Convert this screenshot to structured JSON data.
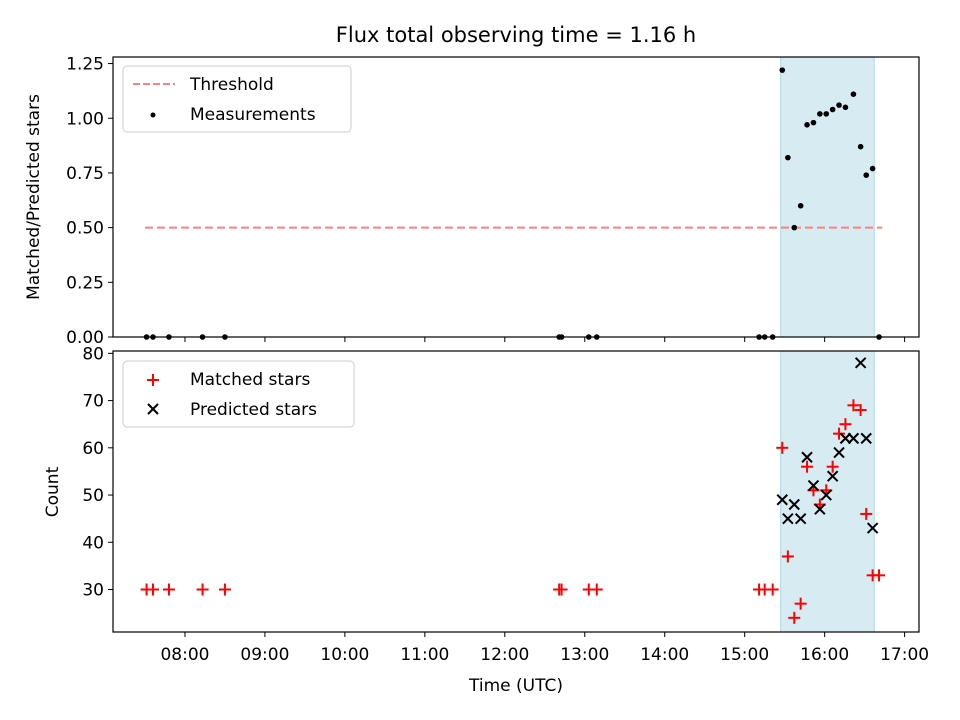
{
  "chart_data": [
    {
      "type": "scatter",
      "title": "Flux total observing time = 1.16 h",
      "xlabel": "",
      "ylabel": "Matched/Predicted stars",
      "ylim": [
        0,
        1.28
      ],
      "yticks": [
        0.0,
        0.25,
        0.5,
        0.75,
        1.0,
        1.25
      ],
      "ytick_labels": [
        "0.00",
        "0.25",
        "0.50",
        "0.75",
        "1.00",
        "1.25"
      ],
      "xlim_hours": [
        7.1,
        17.18
      ],
      "xticks_hours": [
        8,
        9,
        10,
        11,
        12,
        13,
        14,
        15,
        16,
        17
      ],
      "shaded_span_hours": [
        15.45,
        16.62
      ],
      "shaded_color": "#add8e6",
      "legend": {
        "threshold": "Threshold",
        "measurements": "Measurements",
        "placement": "upper-left"
      },
      "threshold": {
        "name": "Threshold",
        "x": [
          7.5,
          16.72
        ],
        "y": 0.5,
        "color": "#ff7f7f"
      },
      "series": [
        {
          "name": "Measurements",
          "color": "#000000",
          "x": [
            7.52,
            7.6,
            7.8,
            8.22,
            8.5,
            12.68,
            12.71,
            13.05,
            13.15,
            15.18,
            15.25,
            15.35,
            15.47,
            15.54,
            15.62,
            15.7,
            15.78,
            15.86,
            15.94,
            16.02,
            16.1,
            16.18,
            16.26,
            16.36,
            16.45,
            16.52,
            16.6,
            16.68
          ],
          "y": [
            0,
            0,
            0,
            0,
            0,
            0,
            0,
            0,
            0,
            0,
            0,
            0,
            1.22,
            0.82,
            0.5,
            0.6,
            0.97,
            0.98,
            1.02,
            1.02,
            1.04,
            1.06,
            1.05,
            1.11,
            0.87,
            0.74,
            0.77,
            0
          ]
        }
      ]
    },
    {
      "type": "scatter",
      "title": "",
      "xlabel": "Time (UTC)",
      "ylabel": "Count",
      "ylim": [
        21,
        80.5
      ],
      "yticks": [
        30,
        40,
        50,
        60,
        70,
        80
      ],
      "ytick_labels": [
        "30",
        "40",
        "50",
        "60",
        "70",
        "80"
      ],
      "xlim_hours": [
        7.1,
        17.18
      ],
      "xticks_hours": [
        8,
        9,
        10,
        11,
        12,
        13,
        14,
        15,
        16,
        17
      ],
      "xtick_labels": [
        "08:00",
        "09:00",
        "10:00",
        "11:00",
        "12:00",
        "13:00",
        "14:00",
        "15:00",
        "16:00",
        "17:00"
      ],
      "shaded_span_hours": [
        15.45,
        16.62
      ],
      "shaded_color": "#add8e6",
      "legend": {
        "matched": "Matched stars",
        "predicted": "Predicted stars",
        "placement": "upper-left"
      },
      "series": [
        {
          "name": "Matched stars",
          "marker": "plus",
          "color": "#ff0000",
          "x": [
            7.52,
            7.6,
            7.8,
            8.22,
            8.5,
            12.68,
            12.71,
            13.05,
            13.15,
            15.18,
            15.25,
            15.35,
            15.47,
            15.54,
            15.62,
            15.7,
            15.78,
            15.86,
            15.94,
            16.02,
            16.1,
            16.18,
            16.26,
            16.36,
            16.45,
            16.52,
            16.6,
            16.68
          ],
          "y": [
            30,
            30,
            30,
            30,
            30,
            30,
            30,
            30,
            30,
            30,
            30,
            30,
            60,
            37,
            24,
            27,
            56,
            51,
            48,
            51,
            56,
            63,
            65,
            69,
            68,
            46,
            33,
            33
          ]
        },
        {
          "name": "Predicted stars",
          "marker": "x",
          "color": "#000000",
          "x": [
            15.47,
            15.54,
            15.62,
            15.7,
            15.78,
            15.86,
            15.94,
            16.02,
            16.1,
            16.18,
            16.26,
            16.36,
            16.45,
            16.52,
            16.6
          ],
          "y": [
            49,
            45,
            48,
            45,
            58,
            52,
            47,
            50,
            54,
            59,
            62,
            62,
            78,
            62,
            43
          ]
        }
      ]
    }
  ]
}
